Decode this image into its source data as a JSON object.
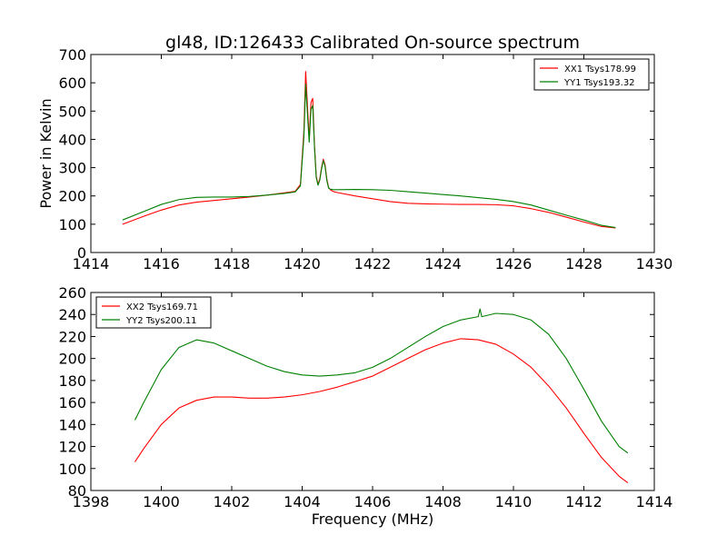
{
  "title": "gl48, ID:126433 Calibrated On-source spectrum",
  "colors": {
    "xx": "#ff0000",
    "yy": "#007f00"
  },
  "chart_data": [
    {
      "type": "line",
      "title": "gl48, ID:126433 Calibrated On-source spectrum",
      "xlabel": "",
      "ylabel": "Power in Kelvin",
      "xlim": [
        1414,
        1430
      ],
      "ylim": [
        0,
        700
      ],
      "xticks": [
        1414,
        1416,
        1418,
        1420,
        1422,
        1424,
        1426,
        1428,
        1430
      ],
      "yticks": [
        0,
        100,
        200,
        300,
        400,
        500,
        600,
        700
      ],
      "grid": false,
      "legend_position": "top-right",
      "series": [
        {
          "name": "XX1 Tsys178.99",
          "color": "#ff0000",
          "x": [
            1414.9,
            1415.5,
            1416.0,
            1416.5,
            1417.0,
            1417.5,
            1418.0,
            1418.5,
            1419.0,
            1419.5,
            1419.8,
            1419.95,
            1420.05,
            1420.1,
            1420.15,
            1420.2,
            1420.25,
            1420.3,
            1420.35,
            1420.4,
            1420.45,
            1420.5,
            1420.55,
            1420.6,
            1420.65,
            1420.7,
            1420.75,
            1420.8,
            1420.85,
            1420.9,
            1421.0,
            1421.5,
            1422.0,
            1422.5,
            1423.0,
            1423.5,
            1424.0,
            1424.5,
            1425.0,
            1425.5,
            1426.0,
            1426.5,
            1427.0,
            1427.5,
            1428.0,
            1428.5,
            1428.9
          ],
          "y": [
            100,
            128,
            150,
            168,
            178,
            184,
            190,
            196,
            203,
            211,
            216,
            240,
            430,
            640,
            520,
            400,
            530,
            545,
            380,
            270,
            240,
            260,
            300,
            330,
            310,
            260,
            230,
            222,
            218,
            215,
            212,
            200,
            190,
            180,
            174,
            172,
            171,
            170,
            170,
            169,
            165,
            155,
            142,
            125,
            108,
            92,
            87
          ]
        },
        {
          "name": "YY1 Tsys193.32",
          "color": "#007f00",
          "x": [
            1414.9,
            1415.5,
            1416.0,
            1416.5,
            1417.0,
            1417.5,
            1418.0,
            1418.5,
            1419.0,
            1419.5,
            1419.8,
            1419.95,
            1420.05,
            1420.1,
            1420.15,
            1420.2,
            1420.25,
            1420.3,
            1420.35,
            1420.4,
            1420.45,
            1420.5,
            1420.55,
            1420.6,
            1420.65,
            1420.7,
            1420.75,
            1420.8,
            1420.85,
            1420.9,
            1421.0,
            1421.5,
            1422.0,
            1422.5,
            1423.0,
            1423.5,
            1424.0,
            1424.5,
            1425.0,
            1425.5,
            1426.0,
            1426.5,
            1427.0,
            1427.5,
            1428.0,
            1428.5,
            1428.9
          ],
          "y": [
            115,
            145,
            170,
            187,
            195,
            196,
            196,
            198,
            203,
            209,
            214,
            235,
            410,
            595,
            490,
            390,
            505,
            520,
            370,
            265,
            238,
            255,
            295,
            325,
            305,
            255,
            228,
            224,
            223,
            222,
            222,
            223,
            222,
            220,
            215,
            210,
            205,
            200,
            194,
            188,
            180,
            168,
            150,
            132,
            115,
            96,
            88
          ]
        }
      ]
    },
    {
      "type": "line",
      "title": "",
      "xlabel": "Frequency (MHz)",
      "ylabel": "",
      "xlim": [
        1398,
        1414
      ],
      "ylim": [
        80,
        260
      ],
      "xticks": [
        1398,
        1400,
        1402,
        1404,
        1406,
        1408,
        1410,
        1412,
        1414
      ],
      "yticks": [
        80,
        100,
        120,
        140,
        160,
        180,
        200,
        220,
        240,
        260
      ],
      "grid": false,
      "legend_position": "top-left",
      "series": [
        {
          "name": "XX2 Tsys169.71",
          "color": "#ff0000",
          "x": [
            1399.25,
            1399.5,
            1400.0,
            1400.5,
            1401.0,
            1401.5,
            1402.0,
            1402.5,
            1403.0,
            1403.5,
            1404.0,
            1404.5,
            1405.0,
            1405.5,
            1406.0,
            1406.5,
            1407.0,
            1407.5,
            1408.0,
            1408.5,
            1409.0,
            1409.5,
            1410.0,
            1410.5,
            1411.0,
            1411.5,
            1412.0,
            1412.5,
            1413.0,
            1413.25
          ],
          "y": [
            106,
            118,
            140,
            155,
            162,
            165,
            165,
            164,
            164,
            165,
            167,
            170,
            174,
            179,
            184,
            192,
            200,
            208,
            214,
            218,
            217,
            213,
            204,
            192,
            175,
            155,
            132,
            110,
            93,
            87
          ]
        },
        {
          "name": "YY2 Tsys200.11",
          "color": "#007f00",
          "x": [
            1399.25,
            1399.5,
            1400.0,
            1400.5,
            1401.0,
            1401.5,
            1402.0,
            1402.5,
            1403.0,
            1403.5,
            1404.0,
            1404.5,
            1405.0,
            1405.5,
            1406.0,
            1406.5,
            1407.0,
            1407.5,
            1408.0,
            1408.5,
            1409.0,
            1409.05,
            1409.1,
            1409.5,
            1410.0,
            1410.5,
            1411.0,
            1411.5,
            1412.0,
            1412.5,
            1413.0,
            1413.25
          ],
          "y": [
            144,
            160,
            190,
            210,
            217,
            214,
            207,
            200,
            193,
            188,
            185,
            184,
            185,
            187,
            192,
            200,
            210,
            220,
            229,
            235,
            238,
            245,
            238,
            241,
            240,
            235,
            222,
            200,
            172,
            143,
            120,
            114
          ]
        }
      ]
    }
  ]
}
